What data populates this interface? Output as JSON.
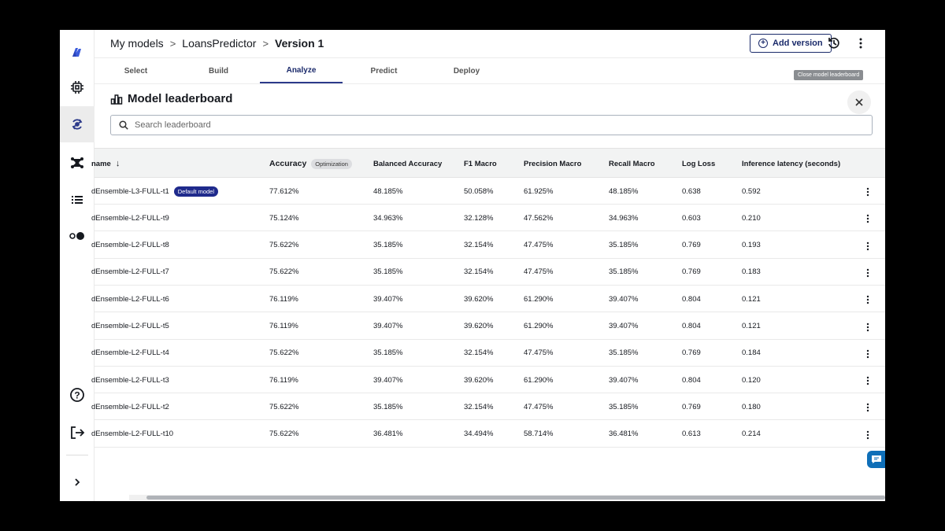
{
  "breadcrumb": {
    "items": [
      "My models",
      "LoansPredictor"
    ],
    "current": "Version 1",
    "separator": ">"
  },
  "header": {
    "add_version_label": "Add version"
  },
  "tabs": [
    "Select",
    "Build",
    "Analyze",
    "Predict",
    "Deploy"
  ],
  "active_tab": "Analyze",
  "tooltip": "Close model leaderboard",
  "leaderboard": {
    "title": "Model leaderboard",
    "search_placeholder": "Search leaderboard"
  },
  "table": {
    "columns": [
      "name",
      "Accuracy",
      "Balanced Accuracy",
      "F1 Macro",
      "Precision Macro",
      "Recall Macro",
      "Log Loss",
      "Inference latency (seconds)"
    ],
    "sort_indicator": "↓",
    "optimization_badge": "Optimization",
    "default_badge": "Default model",
    "rows": [
      {
        "name": "dEnsemble-L3-FULL-t1",
        "acc": "77.612%",
        "bal": "48.185%",
        "f1": "50.058%",
        "prec": "61.925%",
        "rec": "48.185%",
        "logloss": "0.638",
        "lat": "0.592"
      },
      {
        "name": "dEnsemble-L2-FULL-t9",
        "acc": "75.124%",
        "bal": "34.963%",
        "f1": "32.128%",
        "prec": "47.562%",
        "rec": "34.963%",
        "logloss": "0.603",
        "lat": "0.210"
      },
      {
        "name": "dEnsemble-L2-FULL-t8",
        "acc": "75.622%",
        "bal": "35.185%",
        "f1": "32.154%",
        "prec": "47.475%",
        "rec": "35.185%",
        "logloss": "0.769",
        "lat": "0.193"
      },
      {
        "name": "dEnsemble-L2-FULL-t7",
        "acc": "75.622%",
        "bal": "35.185%",
        "f1": "32.154%",
        "prec": "47.475%",
        "rec": "35.185%",
        "logloss": "0.769",
        "lat": "0.183"
      },
      {
        "name": "dEnsemble-L2-FULL-t6",
        "acc": "76.119%",
        "bal": "39.407%",
        "f1": "39.620%",
        "prec": "61.290%",
        "rec": "39.407%",
        "logloss": "0.804",
        "lat": "0.121"
      },
      {
        "name": "dEnsemble-L2-FULL-t5",
        "acc": "76.119%",
        "bal": "39.407%",
        "f1": "39.620%",
        "prec": "61.290%",
        "rec": "39.407%",
        "logloss": "0.804",
        "lat": "0.121"
      },
      {
        "name": "dEnsemble-L2-FULL-t4",
        "acc": "75.622%",
        "bal": "35.185%",
        "f1": "32.154%",
        "prec": "47.475%",
        "rec": "35.185%",
        "logloss": "0.769",
        "lat": "0.184"
      },
      {
        "name": "dEnsemble-L2-FULL-t3",
        "acc": "76.119%",
        "bal": "39.407%",
        "f1": "39.620%",
        "prec": "61.290%",
        "rec": "39.407%",
        "logloss": "0.804",
        "lat": "0.120"
      },
      {
        "name": "dEnsemble-L2-FULL-t2",
        "acc": "75.622%",
        "bal": "35.185%",
        "f1": "32.154%",
        "prec": "47.475%",
        "rec": "35.185%",
        "logloss": "0.769",
        "lat": "0.180"
      },
      {
        "name": "dEnsemble-L2-FULL-t10",
        "acc": "75.622%",
        "bal": "36.481%",
        "f1": "34.494%",
        "prec": "58.714%",
        "rec": "36.481%",
        "logloss": "0.613",
        "lat": "0.214"
      }
    ]
  },
  "sidebar": {
    "icons": [
      "app-logo-icon",
      "chip-icon",
      "models-icon",
      "hub-icon",
      "list-icon",
      "toggle-icon",
      "help-icon",
      "sign-out-icon",
      "expand-icon"
    ],
    "active": "models-icon"
  },
  "colors": {
    "accent": "#1f2a8c",
    "active_tab": "#1b2a6b",
    "chat": "#0f6fb8"
  }
}
